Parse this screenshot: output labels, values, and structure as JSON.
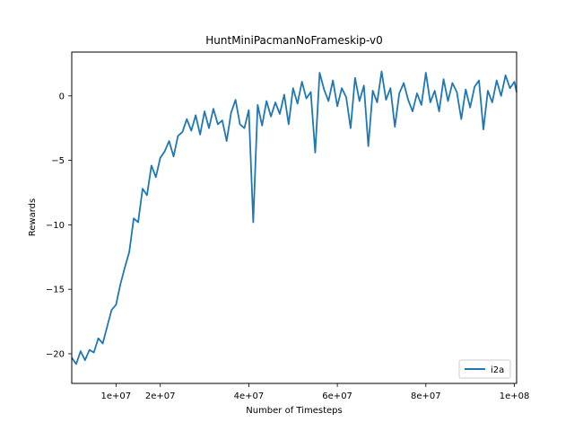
{
  "chart_data": {
    "type": "line",
    "title": "HuntMiniPacmanNoFrameskip-v0",
    "xlabel": "Number of Timesteps",
    "ylabel": "Rewards",
    "xlim": [
      0,
      100500000
    ],
    "ylim": [
      -22.3,
      3.4
    ],
    "x_ticks": [
      {
        "value": 10000000,
        "label": "1e+07"
      },
      {
        "value": 20000000,
        "label": "2e+07"
      },
      {
        "value": 40000000,
        "label": "4e+07"
      },
      {
        "value": 60000000,
        "label": "6e+07"
      },
      {
        "value": 80000000,
        "label": "8e+07"
      },
      {
        "value": 100000000,
        "label": "1e+08"
      }
    ],
    "y_ticks": [
      {
        "value": -20,
        "label": "−20"
      },
      {
        "value": -15,
        "label": "−15"
      },
      {
        "value": -10,
        "label": "−10"
      },
      {
        "value": -5,
        "label": "−5"
      },
      {
        "value": 0,
        "label": "0"
      }
    ],
    "grid": false,
    "legend_position": "lower-right",
    "series": [
      {
        "name": "i2a",
        "color": "#1f77b4",
        "x": [
          0,
          1000000,
          2000000,
          3000000,
          4000000,
          5000000,
          6000000,
          7000000,
          8000000,
          9000000,
          10000000,
          11000000,
          12000000,
          13000000,
          14000000,
          15000000,
          16000000,
          17000000,
          18000000,
          19000000,
          20000000,
          21000000,
          22000000,
          23000000,
          24000000,
          25000000,
          26000000,
          27000000,
          28000000,
          29000000,
          30000000,
          31000000,
          32000000,
          33000000,
          34000000,
          35000000,
          36000000,
          37000000,
          38000000,
          39000000,
          40000000,
          41000000,
          42000000,
          43000000,
          44000000,
          45000000,
          46000000,
          47000000,
          48000000,
          49000000,
          50000000,
          51000000,
          52000000,
          53000000,
          54000000,
          55000000,
          56000000,
          57000000,
          58000000,
          59000000,
          60000000,
          61000000,
          62000000,
          63000000,
          64000000,
          65000000,
          66000000,
          67000000,
          68000000,
          69000000,
          70000000,
          71000000,
          72000000,
          73000000,
          74000000,
          75000000,
          76000000,
          77000000,
          78000000,
          79000000,
          80000000,
          81000000,
          82000000,
          83000000,
          84000000,
          85000000,
          86000000,
          87000000,
          88000000,
          89000000,
          90000000,
          91000000,
          92000000,
          93000000,
          94000000,
          95000000,
          96000000,
          97000000,
          98000000,
          99000000,
          100000000,
          100500000
        ],
        "values": [
          -20.3,
          -20.8,
          -19.8,
          -20.5,
          -19.7,
          -19.9,
          -18.8,
          -19.2,
          -17.9,
          -16.6,
          -16.2,
          -14.6,
          -13.3,
          -12.1,
          -9.5,
          -9.8,
          -7.2,
          -7.7,
          -5.4,
          -6.3,
          -4.8,
          -4.3,
          -3.5,
          -4.7,
          -3.1,
          -2.8,
          -1.8,
          -2.7,
          -1.5,
          -3.0,
          -1.2,
          -2.5,
          -1.0,
          -2.2,
          -1.9,
          -3.5,
          -1.3,
          -0.3,
          -2.2,
          -2.5,
          -1.1,
          -9.8,
          -0.7,
          -2.3,
          -0.4,
          -1.6,
          -0.5,
          -1.4,
          0.1,
          -2.2,
          0.6,
          -0.6,
          1.1,
          -0.2,
          0.3,
          -4.4,
          1.8,
          0.5,
          -0.4,
          1.2,
          -0.8,
          0.6,
          -0.1,
          -2.5,
          1.4,
          -0.4,
          0.8,
          -3.9,
          0.4,
          -0.5,
          1.9,
          -0.3,
          0.6,
          -2.4,
          0.2,
          1.0,
          -0.3,
          -1.2,
          0.2,
          -0.7,
          1.8,
          -0.5,
          0.4,
          -1.2,
          1.3,
          -0.4,
          1.0,
          0.3,
          -1.8,
          0.5,
          -0.9,
          0.7,
          1.2,
          -2.6,
          0.4,
          -0.5,
          1.2,
          0.0,
          1.6,
          0.6,
          1.1,
          0.3
        ]
      }
    ]
  }
}
